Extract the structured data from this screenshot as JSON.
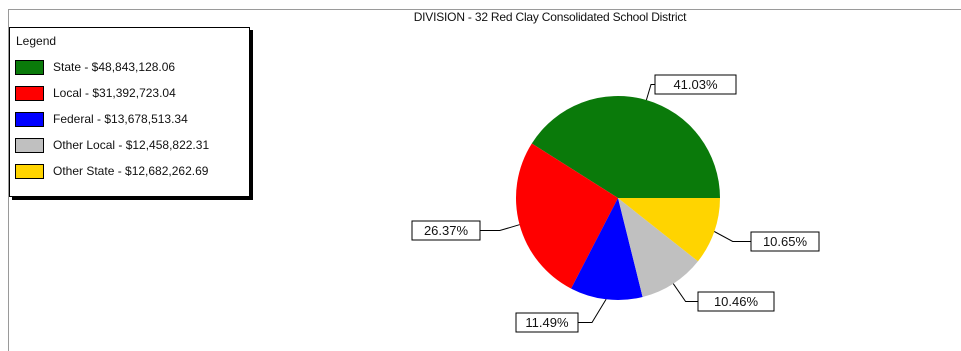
{
  "chart_data": {
    "type": "pie",
    "title": "DIVISION - 32  Red Clay Consolidated School District",
    "legend_title": "Legend",
    "legend_position": "top-left",
    "slices": [
      {
        "label": "State - $48,843,128.06",
        "value": 48843128.06,
        "percent": 41.03,
        "percent_label": "41.03%",
        "color": "#0a7a0a"
      },
      {
        "label": "Local - $31,392,723.04",
        "value": 31392723.04,
        "percent": 26.37,
        "percent_label": "26.37%",
        "color": "#ff0000"
      },
      {
        "label": "Federal - $13,678,513.34",
        "value": 13678513.34,
        "percent": 11.49,
        "percent_label": "11.49%",
        "color": "#0000ff"
      },
      {
        "label": "Other Local - $12,458,822.31",
        "value": 12458822.31,
        "percent": 10.46,
        "percent_label": "10.46%",
        "color": "#c0c0c0"
      },
      {
        "label": "Other State - $12,682,262.69",
        "value": 12682262.69,
        "percent": 10.65,
        "percent_label": "10.65%",
        "color": "#ffd400"
      }
    ]
  }
}
